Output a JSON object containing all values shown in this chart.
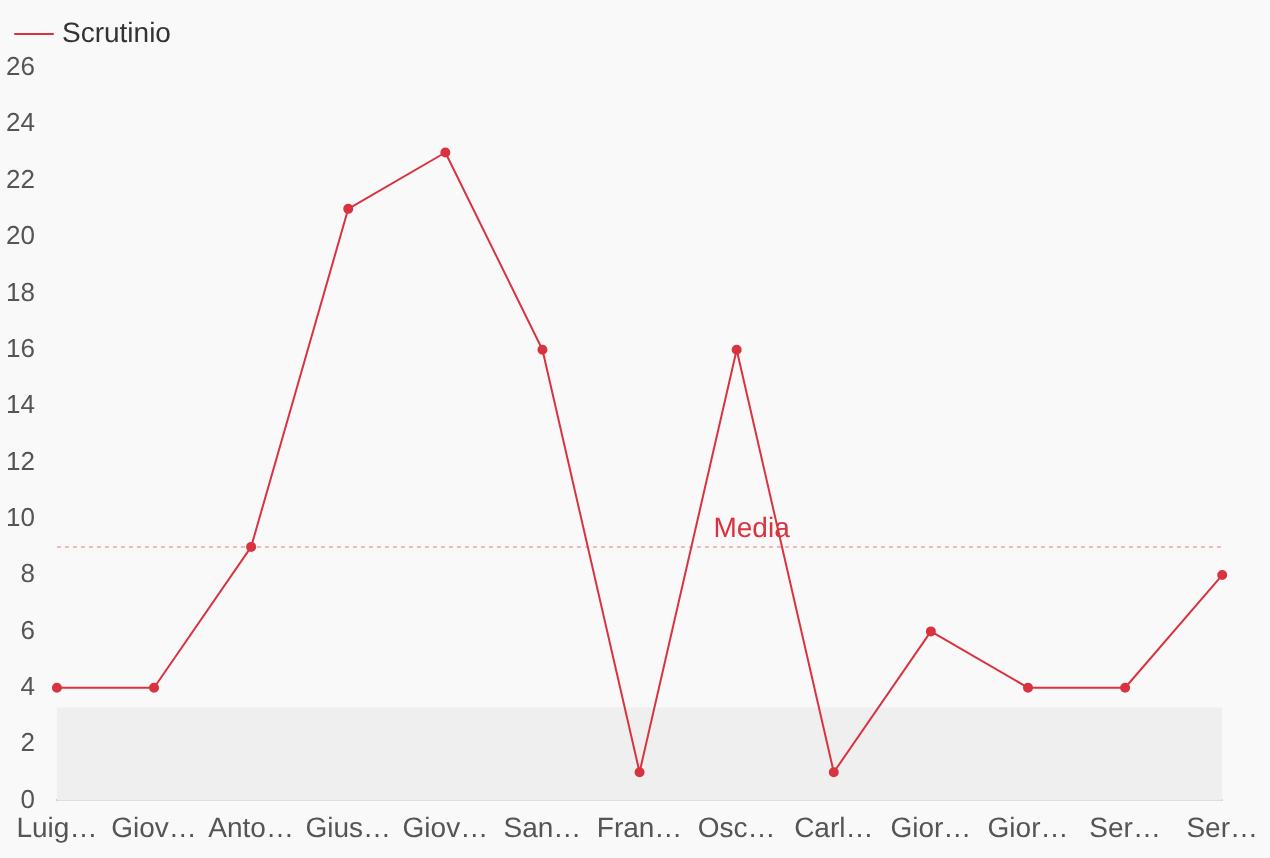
{
  "chart_data": {
    "type": "line",
    "categories": [
      "Luig…",
      "Giov…",
      "Anto…",
      "Gius…",
      "Giov…",
      "San…",
      "Fran…",
      "Osc…",
      "Carl…",
      "Gior…",
      "Gior…",
      "Ser…",
      "Ser…"
    ],
    "series": [
      {
        "name": "Scrutinio",
        "color": "#d9333f",
        "values": [
          4,
          4,
          9,
          21,
          23,
          16,
          1,
          16,
          1,
          6,
          4,
          4,
          8
        ]
      }
    ],
    "ylim": [
      0,
      26
    ],
    "yticks": [
      0,
      2,
      4,
      6,
      8,
      10,
      12,
      14,
      16,
      18,
      20,
      22,
      24,
      26
    ],
    "grid": false,
    "legend": "top left",
    "marker": "circle",
    "line_style": "solid",
    "ref_lines": [
      {
        "axis": "y",
        "value": 9,
        "label": "Media",
        "color": "#f4b6bb",
        "line_style": "dotted"
      }
    ],
    "bands": [
      {
        "axis": "y",
        "from": 0,
        "to": 3.3,
        "color": "#efefef"
      }
    ]
  }
}
